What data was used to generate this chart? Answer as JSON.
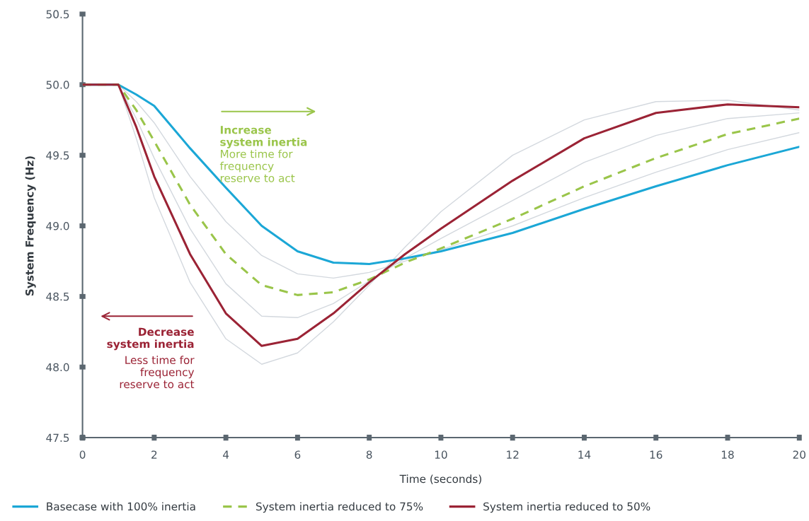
{
  "chart_data": {
    "type": "line",
    "xlabel": "Time (seconds)",
    "ylabel": "System Frequency (Hz)",
    "x": [
      0,
      1,
      1.5,
      2,
      3,
      4,
      5,
      6,
      7,
      8,
      9,
      10,
      12,
      14,
      16,
      18,
      20
    ],
    "xlim": [
      0,
      20
    ],
    "xticks": [
      0,
      2,
      4,
      6,
      8,
      10,
      12,
      14,
      16,
      18,
      20
    ],
    "ylim": [
      47.5,
      50.5
    ],
    "yticks": [
      {
        "value": 47.5,
        "label": "47.5"
      },
      {
        "value": 48.0,
        "label": "48.0"
      },
      {
        "value": 48.5,
        "label": "48.5"
      },
      {
        "value": 49.0,
        "label": "49.0"
      },
      {
        "value": 49.5,
        "label": "49.5"
      },
      {
        "value": 50.0,
        "label": "50.0"
      },
      {
        "value": 50.5,
        "label": "50.5"
      }
    ],
    "grid": false,
    "legend": "bottom",
    "marker": "none",
    "series": [
      {
        "color": "#d3d8de",
        "values": [
          50,
          50,
          49.88,
          49.73,
          49.35,
          49.03,
          48.79,
          48.66,
          48.63,
          48.67,
          48.75,
          48.83,
          49.0,
          49.2,
          49.38,
          49.54,
          49.66
        ]
      },
      {
        "color": "#d3d8de",
        "values": [
          50,
          50,
          49.76,
          49.48,
          48.98,
          48.59,
          48.36,
          48.35,
          48.45,
          48.61,
          48.77,
          48.91,
          49.18,
          49.45,
          49.64,
          49.76,
          49.8
        ]
      },
      {
        "color": "#d3d8de",
        "values": [
          50,
          50,
          49.62,
          49.2,
          48.6,
          48.2,
          48.02,
          48.1,
          48.32,
          48.58,
          48.85,
          49.1,
          49.5,
          49.75,
          49.88,
          49.89,
          49.82
        ]
      },
      {
        "name": "Basecase with 100% inertia",
        "color": "#1ba7d6",
        "line_style": "solid",
        "values": [
          50,
          50,
          49.93,
          49.85,
          49.55,
          49.27,
          49.0,
          48.82,
          48.74,
          48.73,
          48.77,
          48.82,
          48.95,
          49.12,
          49.28,
          49.43,
          49.56
        ]
      },
      {
        "name": "System inertia reduced to 75%",
        "color": "#9ac54a",
        "line_style": "dashed",
        "values": [
          50,
          50,
          49.82,
          49.6,
          49.15,
          48.8,
          48.58,
          48.51,
          48.53,
          48.62,
          48.74,
          48.84,
          49.05,
          49.28,
          49.48,
          49.65,
          49.76
        ]
      },
      {
        "name": "System inertia reduced to 50%",
        "color": "#9b2335",
        "line_style": "solid",
        "values": [
          50,
          50,
          49.7,
          49.35,
          48.8,
          48.38,
          48.15,
          48.2,
          48.38,
          48.6,
          48.8,
          48.98,
          49.32,
          49.62,
          49.8,
          49.86,
          49.84
        ]
      }
    ],
    "annotations": [
      "Increase\nsystem inertia",
      "More time for\nfrequency\nreserve to act",
      "Decrease\nsystem inertia",
      "Less time for\nfrequency\nreserve to act"
    ]
  }
}
